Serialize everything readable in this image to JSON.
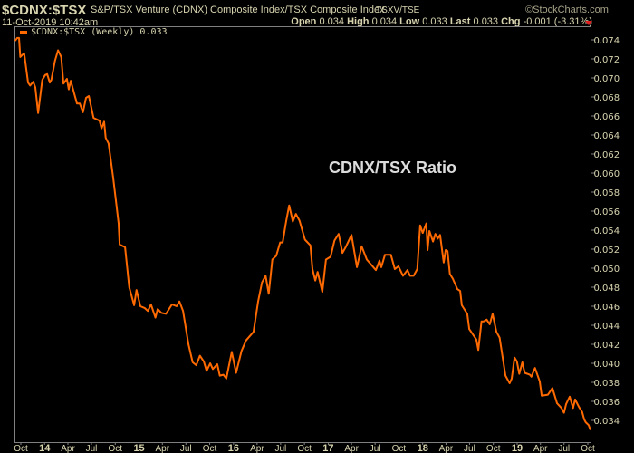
{
  "header": {
    "symbol": "$CDNX:$TSX",
    "description": "S&P/TSX Venture (CDNX) Composite Index/TSX Composite Index",
    "exchange": "TSXV/TSE",
    "brand": "©StockCharts.com",
    "datetime": "11-Oct-2019 10:42am",
    "quote": {
      "open_label": "Open",
      "open": "0.034",
      "high_label": "High",
      "high": "0.034",
      "low_label": "Low",
      "low": "0.033",
      "last_label": "Last",
      "last": "0.033",
      "chg_label": "Chg",
      "chg": "-0.001 (-3.31%)",
      "direction_icon": "down-triangle-icon"
    }
  },
  "colors": {
    "background": "#000000",
    "series": "#ff6a00",
    "text": "#d8d4b0",
    "down": "#e02020",
    "axis": "#808080"
  },
  "chart_data": {
    "type": "line",
    "legend": "$CDNX:$TSX (Weekly) 0.033",
    "legend_placement": "top-left",
    "annotation": "CDNX/TSX Ratio",
    "grid": false,
    "ylim": [
      0.0325,
      0.0755
    ],
    "y_ticks": [
      "0.074",
      "0.072",
      "0.070",
      "0.068",
      "0.066",
      "0.064",
      "0.062",
      "0.060",
      "0.058",
      "0.056",
      "0.054",
      "0.052",
      "0.050",
      "0.048",
      "0.046",
      "0.044",
      "0.042",
      "0.040",
      "0.038",
      "0.036",
      "0.034"
    ],
    "x_ticks": [
      {
        "label": "Oct",
        "date": "2013-10-01"
      },
      {
        "label": "14",
        "date": "2014-01-01",
        "year": true
      },
      {
        "label": "Apr",
        "date": "2014-04-01"
      },
      {
        "label": "Jul",
        "date": "2014-07-01"
      },
      {
        "label": "Oct",
        "date": "2014-10-01"
      },
      {
        "label": "15",
        "date": "2015-01-01",
        "year": true
      },
      {
        "label": "Apr",
        "date": "2015-04-01"
      },
      {
        "label": "Jul",
        "date": "2015-07-01"
      },
      {
        "label": "Oct",
        "date": "2015-10-01"
      },
      {
        "label": "16",
        "date": "2016-01-01",
        "year": true
      },
      {
        "label": "Apr",
        "date": "2016-04-01"
      },
      {
        "label": "Jul",
        "date": "2016-07-01"
      },
      {
        "label": "Oct",
        "date": "2016-10-01"
      },
      {
        "label": "17",
        "date": "2017-01-01",
        "year": true
      },
      {
        "label": "Apr",
        "date": "2017-04-01"
      },
      {
        "label": "Jul",
        "date": "2017-07-01"
      },
      {
        "label": "Oct",
        "date": "2017-10-01"
      },
      {
        "label": "18",
        "date": "2018-01-01",
        "year": true
      },
      {
        "label": "Apr",
        "date": "2018-04-01"
      },
      {
        "label": "Jul",
        "date": "2018-07-01"
      },
      {
        "label": "Oct",
        "date": "2018-10-01"
      },
      {
        "label": "19",
        "date": "2019-01-01",
        "year": true
      },
      {
        "label": "Apr",
        "date": "2019-04-01"
      },
      {
        "label": "Jul",
        "date": "2019-07-01"
      },
      {
        "label": "Oct",
        "date": "2019-10-01"
      }
    ],
    "series": [
      {
        "x": [
          "2013-09-09",
          "2013-09-17",
          "2013-09-24",
          "2013-09-29",
          "2013-10-14",
          "2013-10-29",
          "2013-11-06",
          "2013-11-18",
          "2013-11-26",
          "2013-12-07",
          "2013-12-23",
          "2014-01-03",
          "2014-01-11",
          "2014-01-21",
          "2014-01-27",
          "2014-02-10",
          "2014-02-22",
          "2014-03-06",
          "2014-03-15",
          "2014-03-28",
          "2014-04-04",
          "2014-04-12",
          "2014-05-06",
          "2014-05-17",
          "2014-05-29",
          "2014-06-10",
          "2014-06-21",
          "2014-07-09",
          "2014-08-01",
          "2014-08-09",
          "2014-08-19",
          "2014-08-25",
          "2014-09-05",
          "2014-09-23",
          "2014-10-14",
          "2014-10-18",
          "2014-11-08",
          "2014-11-24",
          "2014-12-13",
          "2014-12-22",
          "2015-01-06",
          "2015-01-23",
          "2015-02-04",
          "2015-02-16",
          "2015-03-05",
          "2015-03-14",
          "2015-03-28",
          "2015-04-15",
          "2015-05-08",
          "2015-05-26",
          "2015-06-06",
          "2015-06-20",
          "2015-07-11",
          "2015-07-27",
          "2015-08-10",
          "2015-08-24",
          "2015-09-08",
          "2015-09-19",
          "2015-10-03",
          "2015-10-13",
          "2015-10-30",
          "2015-11-09",
          "2015-11-23",
          "2015-12-04",
          "2015-12-25",
          "2016-01-11",
          "2016-02-01",
          "2016-02-18",
          "2016-03-18",
          "2016-04-05",
          "2016-04-20",
          "2016-05-04",
          "2016-05-16",
          "2016-05-30",
          "2016-06-14",
          "2016-06-29",
          "2016-07-09",
          "2016-07-22",
          "2016-08-03",
          "2016-08-17",
          "2016-08-29",
          "2016-09-12",
          "2016-10-03",
          "2016-10-24",
          "2016-11-01",
          "2016-11-12",
          "2016-11-21",
          "2016-12-09",
          "2016-12-23",
          "2017-01-10",
          "2017-01-25",
          "2017-02-10",
          "2017-02-25",
          "2017-03-09",
          "2017-04-01",
          "2017-04-22",
          "2017-05-10",
          "2017-05-30",
          "2017-07-04",
          "2017-07-18",
          "2017-07-25",
          "2017-08-08",
          "2017-08-31",
          "2017-09-15",
          "2017-09-29",
          "2017-10-17",
          "2017-11-03",
          "2017-11-13",
          "2017-11-27",
          "2017-12-11",
          "2017-12-22",
          "2018-01-01",
          "2018-01-15",
          "2018-01-20",
          "2018-01-27",
          "2018-02-10",
          "2018-02-19",
          "2018-02-28",
          "2018-03-09",
          "2018-03-23",
          "2018-03-31",
          "2018-04-07",
          "2018-04-16",
          "2018-04-27",
          "2018-05-15",
          "2018-05-26",
          "2018-06-01",
          "2018-06-22",
          "2018-06-30",
          "2018-07-27",
          "2018-08-04",
          "2018-08-16",
          "2018-08-24",
          "2018-09-05",
          "2018-09-17",
          "2018-09-28",
          "2018-10-13",
          "2018-10-25",
          "2018-11-17",
          "2018-12-03",
          "2018-12-11",
          "2018-12-22",
          "2018-12-31",
          "2019-01-09",
          "2019-01-21",
          "2019-01-30",
          "2019-02-19",
          "2019-02-25",
          "2019-03-11",
          "2019-03-29",
          "2019-04-06",
          "2019-04-30",
          "2019-05-17",
          "2019-06-04",
          "2019-06-21",
          "2019-07-01",
          "2019-07-09",
          "2019-07-23",
          "2019-08-05",
          "2019-08-13",
          "2019-08-28",
          "2019-09-09",
          "2019-09-17",
          "2019-09-23",
          "2019-10-04",
          "2019-10-11"
        ],
        "y": [
          0.0739,
          0.0742,
          0.0742,
          0.0722,
          0.0726,
          0.0695,
          0.0692,
          0.0696,
          0.069,
          0.0663,
          0.0698,
          0.0703,
          0.0704,
          0.0695,
          0.0698,
          0.0718,
          0.0729,
          0.0722,
          0.0694,
          0.0699,
          0.0688,
          0.0697,
          0.0673,
          0.0673,
          0.0664,
          0.0679,
          0.0681,
          0.0658,
          0.0655,
          0.0647,
          0.0654,
          0.0637,
          0.0631,
          0.0595,
          0.0547,
          0.0525,
          0.0522,
          0.048,
          0.0461,
          0.0477,
          0.046,
          0.0458,
          0.0455,
          0.0462,
          0.0448,
          0.0457,
          0.0453,
          0.0452,
          0.0462,
          0.046,
          0.0465,
          0.0455,
          0.042,
          0.0401,
          0.0398,
          0.0408,
          0.0402,
          0.0392,
          0.04,
          0.0394,
          0.0399,
          0.0387,
          0.0388,
          0.0384,
          0.0412,
          0.039,
          0.0413,
          0.0424,
          0.0433,
          0.0465,
          0.0485,
          0.0492,
          0.0473,
          0.0509,
          0.0513,
          0.0527,
          0.0527,
          0.0549,
          0.0566,
          0.0549,
          0.0557,
          0.055,
          0.053,
          0.0524,
          0.0499,
          0.0487,
          0.0496,
          0.0475,
          0.0509,
          0.0512,
          0.0529,
          0.0536,
          0.0516,
          0.0522,
          0.0535,
          0.0501,
          0.0523,
          0.0509,
          0.0498,
          0.0508,
          0.0501,
          0.0514,
          0.0514,
          0.0499,
          0.0502,
          0.0492,
          0.0498,
          0.0492,
          0.0492,
          0.0499,
          0.0545,
          0.0537,
          0.0547,
          0.0519,
          0.0539,
          0.0528,
          0.0536,
          0.0531,
          0.0535,
          0.0506,
          0.0519,
          0.0518,
          0.0494,
          0.0489,
          0.0478,
          0.0476,
          0.0461,
          0.0452,
          0.0436,
          0.0425,
          0.0414,
          0.0444,
          0.0444,
          0.0446,
          0.0441,
          0.0452,
          0.0433,
          0.0427,
          0.0387,
          0.0379,
          0.0384,
          0.0406,
          0.0402,
          0.0389,
          0.0401,
          0.039,
          0.0388,
          0.0386,
          0.0395,
          0.0381,
          0.0366,
          0.0367,
          0.0374,
          0.0358,
          0.0353,
          0.0348,
          0.0357,
          0.0365,
          0.0353,
          0.0362,
          0.0354,
          0.0349,
          0.0341,
          0.0338,
          0.0335,
          0.033
        ]
      }
    ]
  }
}
